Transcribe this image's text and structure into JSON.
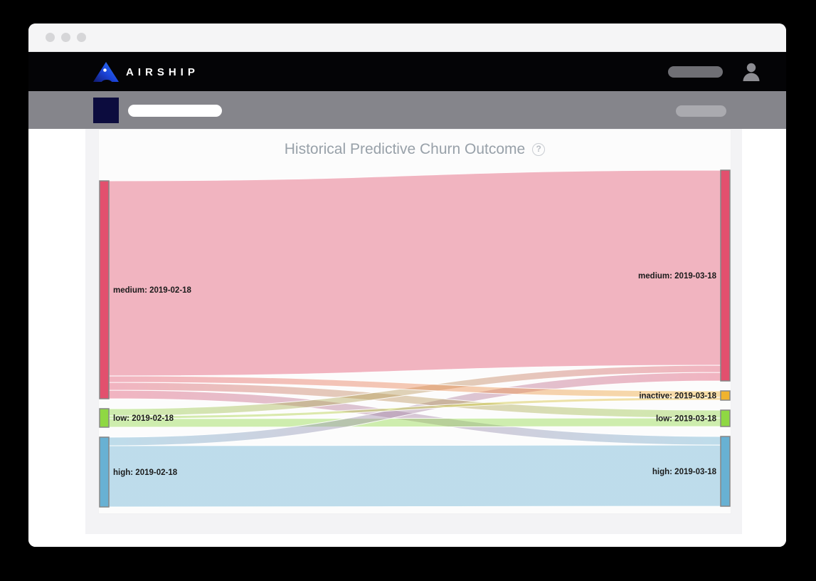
{
  "browser": {
    "window_controls": {
      "count": 3,
      "style": "gray-dots"
    }
  },
  "navbar": {
    "brand": "AIRSHIP",
    "brand_logo": "airship-triangle-logo",
    "accent_color": "#2a6bf2",
    "right": {
      "menu_placeholder": "pill",
      "account_icon": "person-icon"
    }
  },
  "subnav": {
    "app_tile_color": "#0c0c3e",
    "search_placeholder": "pill",
    "right_placeholder": "pill"
  },
  "main": {
    "title": "Historical Predictive Churn Outcome",
    "help_glyph": "?"
  },
  "chart_data": {
    "type": "sankey",
    "title": "Historical Predictive Churn Outcome",
    "periods": [
      "2019-02-18",
      "2019-03-18"
    ],
    "legend_position": "none",
    "node_border_color": "#868686",
    "link_opacity": 0.42,
    "nodes": [
      {
        "id": "medium-feb",
        "label": "medium: 2019-02-18",
        "category": "medium",
        "color": "#e2506e",
        "side": "left"
      },
      {
        "id": "low-feb",
        "label": "low: 2019-02-18",
        "category": "low",
        "color": "#8fd843",
        "side": "left"
      },
      {
        "id": "high-feb",
        "label": "high: 2019-02-18",
        "category": "high",
        "color": "#68b1d3",
        "side": "left"
      },
      {
        "id": "medium-mar",
        "label": "medium: 2019-03-18",
        "category": "medium",
        "color": "#e2506e",
        "side": "right"
      },
      {
        "id": "inactive-mar",
        "label": "inactive: 2019-03-18",
        "category": "inactive",
        "color": "#efb32e",
        "side": "right"
      },
      {
        "id": "low-mar",
        "label": "low: 2019-03-18",
        "category": "low",
        "color": "#8fd843",
        "side": "right"
      },
      {
        "id": "high-mar",
        "label": "high: 2019-03-18",
        "category": "high",
        "color": "#68b1d3",
        "side": "right"
      }
    ],
    "links": [
      {
        "source": "medium-feb",
        "target": "medium-mar",
        "value": 274
      },
      {
        "source": "medium-feb",
        "target": "inactive-mar",
        "value": 9
      },
      {
        "source": "medium-feb",
        "target": "low-mar",
        "value": 11
      },
      {
        "source": "medium-feb",
        "target": "high-mar",
        "value": 12
      },
      {
        "source": "low-feb",
        "target": "medium-mar",
        "value": 10
      },
      {
        "source": "low-feb",
        "target": "inactive-mar",
        "value": 4
      },
      {
        "source": "low-feb",
        "target": "low-mar",
        "value": 12
      },
      {
        "source": "high-feb",
        "target": "medium-mar",
        "value": 12
      },
      {
        "source": "high-feb",
        "target": "high-mar",
        "value": 86
      }
    ]
  }
}
